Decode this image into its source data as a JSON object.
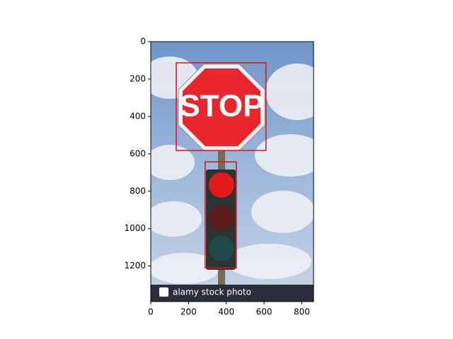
{
  "chart_data": {
    "type": "image",
    "xlim": [
      0,
      862
    ],
    "ylim": [
      1390,
      0
    ],
    "xticks": [
      0,
      200,
      400,
      600,
      800
    ],
    "yticks": [
      0,
      200,
      400,
      600,
      800,
      1000,
      1200
    ],
    "boxes": [
      {
        "x": [
          135,
          610
        ],
        "y": [
          113,
          582
        ],
        "color": "#e01010"
      },
      {
        "x": [
          288,
          453
        ],
        "y": [
          643,
          1210
        ],
        "color": "#e01010"
      }
    ],
    "sign_text": "STOP",
    "watermark": "alamy stock photo"
  }
}
